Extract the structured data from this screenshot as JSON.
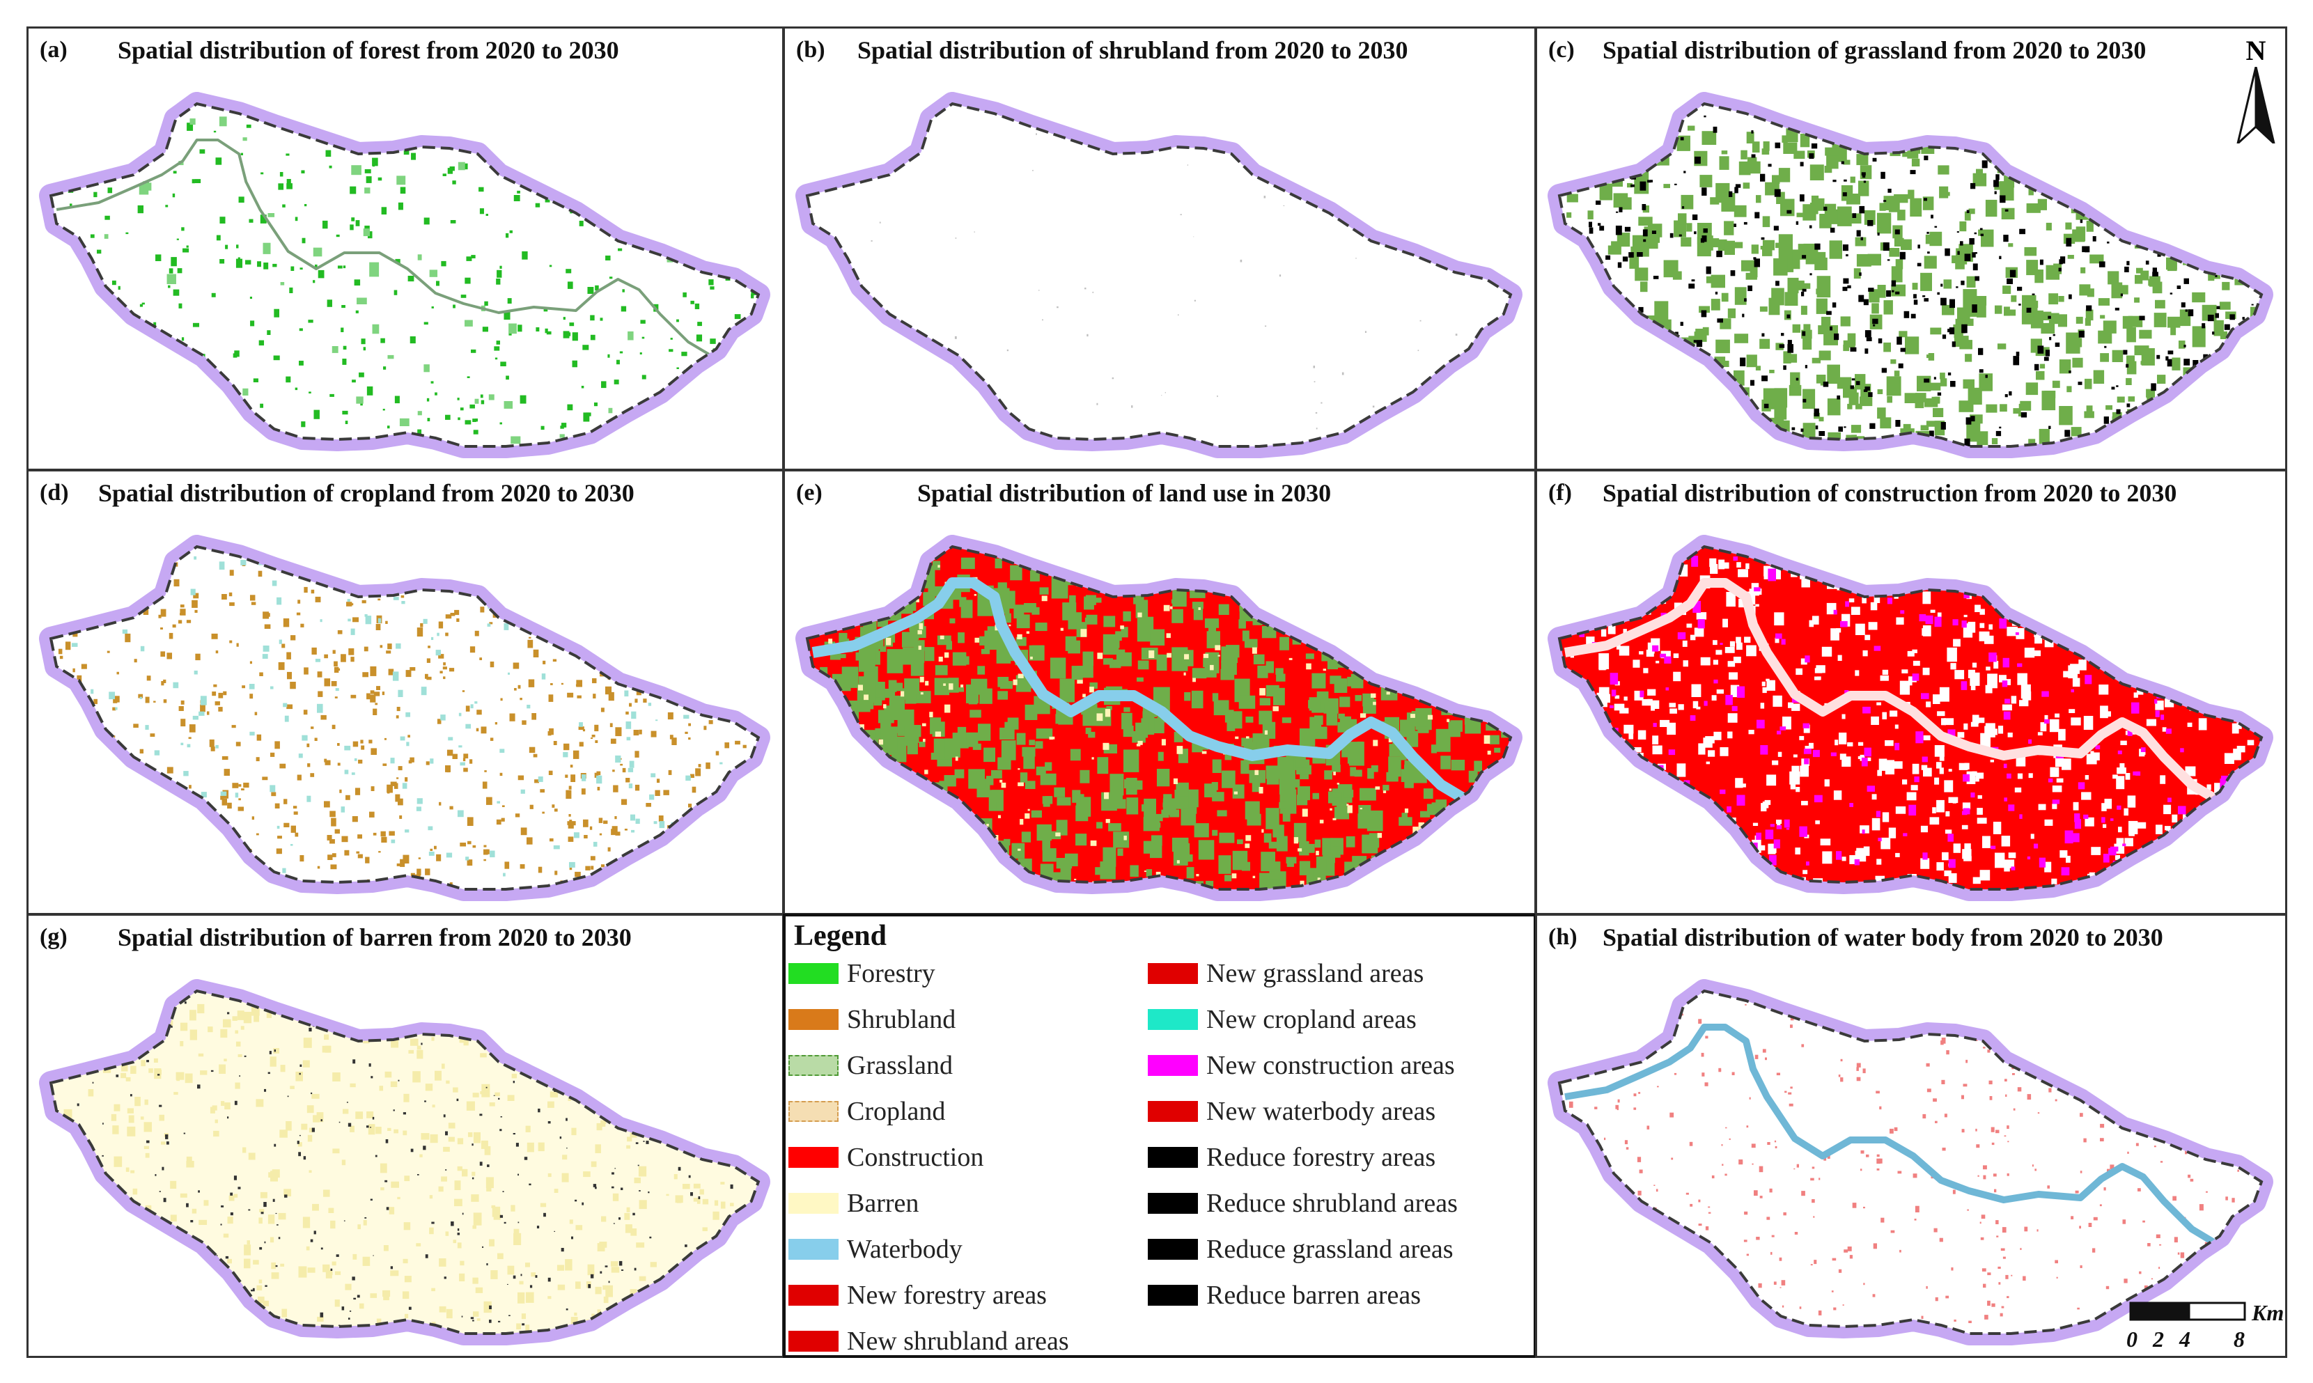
{
  "panels": [
    {
      "label": "(a)",
      "title": "Spatial distribution of forest from 2020 to 2030"
    },
    {
      "label": "(b)",
      "title": "Spatial distribution of shrubland from 2020 to 2030"
    },
    {
      "label": "(c)",
      "title": "Spatial distribution of grassland from 2020 to 2030"
    },
    {
      "label": "(d)",
      "title": "Spatial distribution of cropland from 2020 to 2030"
    },
    {
      "label": "(e)",
      "title": "Spatial distribution of land use in 2030"
    },
    {
      "label": "(f)",
      "title": "Spatial distribution of construction from 2020 to 2030"
    },
    {
      "label": "(g)",
      "title": "Spatial distribution of barren from 2020 to 2030"
    },
    {
      "label": "(h)",
      "title": "Spatial distribution of water body from 2020 to 2030"
    }
  ],
  "legend": {
    "title": "Legend",
    "left_items": [
      {
        "label": "Forestry",
        "color": "#22dd22"
      },
      {
        "label": "Shrubland",
        "color": "#d97a1a"
      },
      {
        "label": "Grassland",
        "color": "#6fae4a"
      },
      {
        "label": "Cropland",
        "color": "#f5deb3"
      },
      {
        "label": "Construction",
        "color": "#ff0000"
      },
      {
        "label": "Barren",
        "color": "#fff8c4"
      },
      {
        "label": "Waterbody",
        "color": "#87ceeb"
      },
      {
        "label": "New forestry areas",
        "color": "#e00000"
      },
      {
        "label": "New shrubland areas",
        "color": "#e00000"
      }
    ],
    "right_items": [
      {
        "label": "New grassland areas",
        "color": "#e00000"
      },
      {
        "label": "New cropland areas",
        "color": "#1ee8c8"
      },
      {
        "label": "New construction areas",
        "color": "#ff00ff"
      },
      {
        "label": "New waterbody areas",
        "color": "#e00000"
      },
      {
        "label": "Reduce forestry areas",
        "color": "#000000"
      },
      {
        "label": "Reduce shrubland areas",
        "color": "#000000"
      },
      {
        "label": "Reduce grassland areas",
        "color": "#000000"
      },
      {
        "label": "Reduce barren areas",
        "color": "#000000"
      }
    ]
  },
  "north_arrow": {
    "letter": "N"
  },
  "scale": {
    "unit": "Km",
    "ticks": [
      "0",
      "2",
      "4",
      "8"
    ]
  },
  "colors": {
    "boundary_glow": "#b38cf0",
    "boundary_line": "#3a3a3a",
    "forest": "#22bb22",
    "grass": "#6fae4a",
    "crop": "#c9902a",
    "construction": "#ff0000",
    "new_construction": "#ff00ff",
    "barren": "#fff4b8",
    "water": "#87ceeb"
  }
}
